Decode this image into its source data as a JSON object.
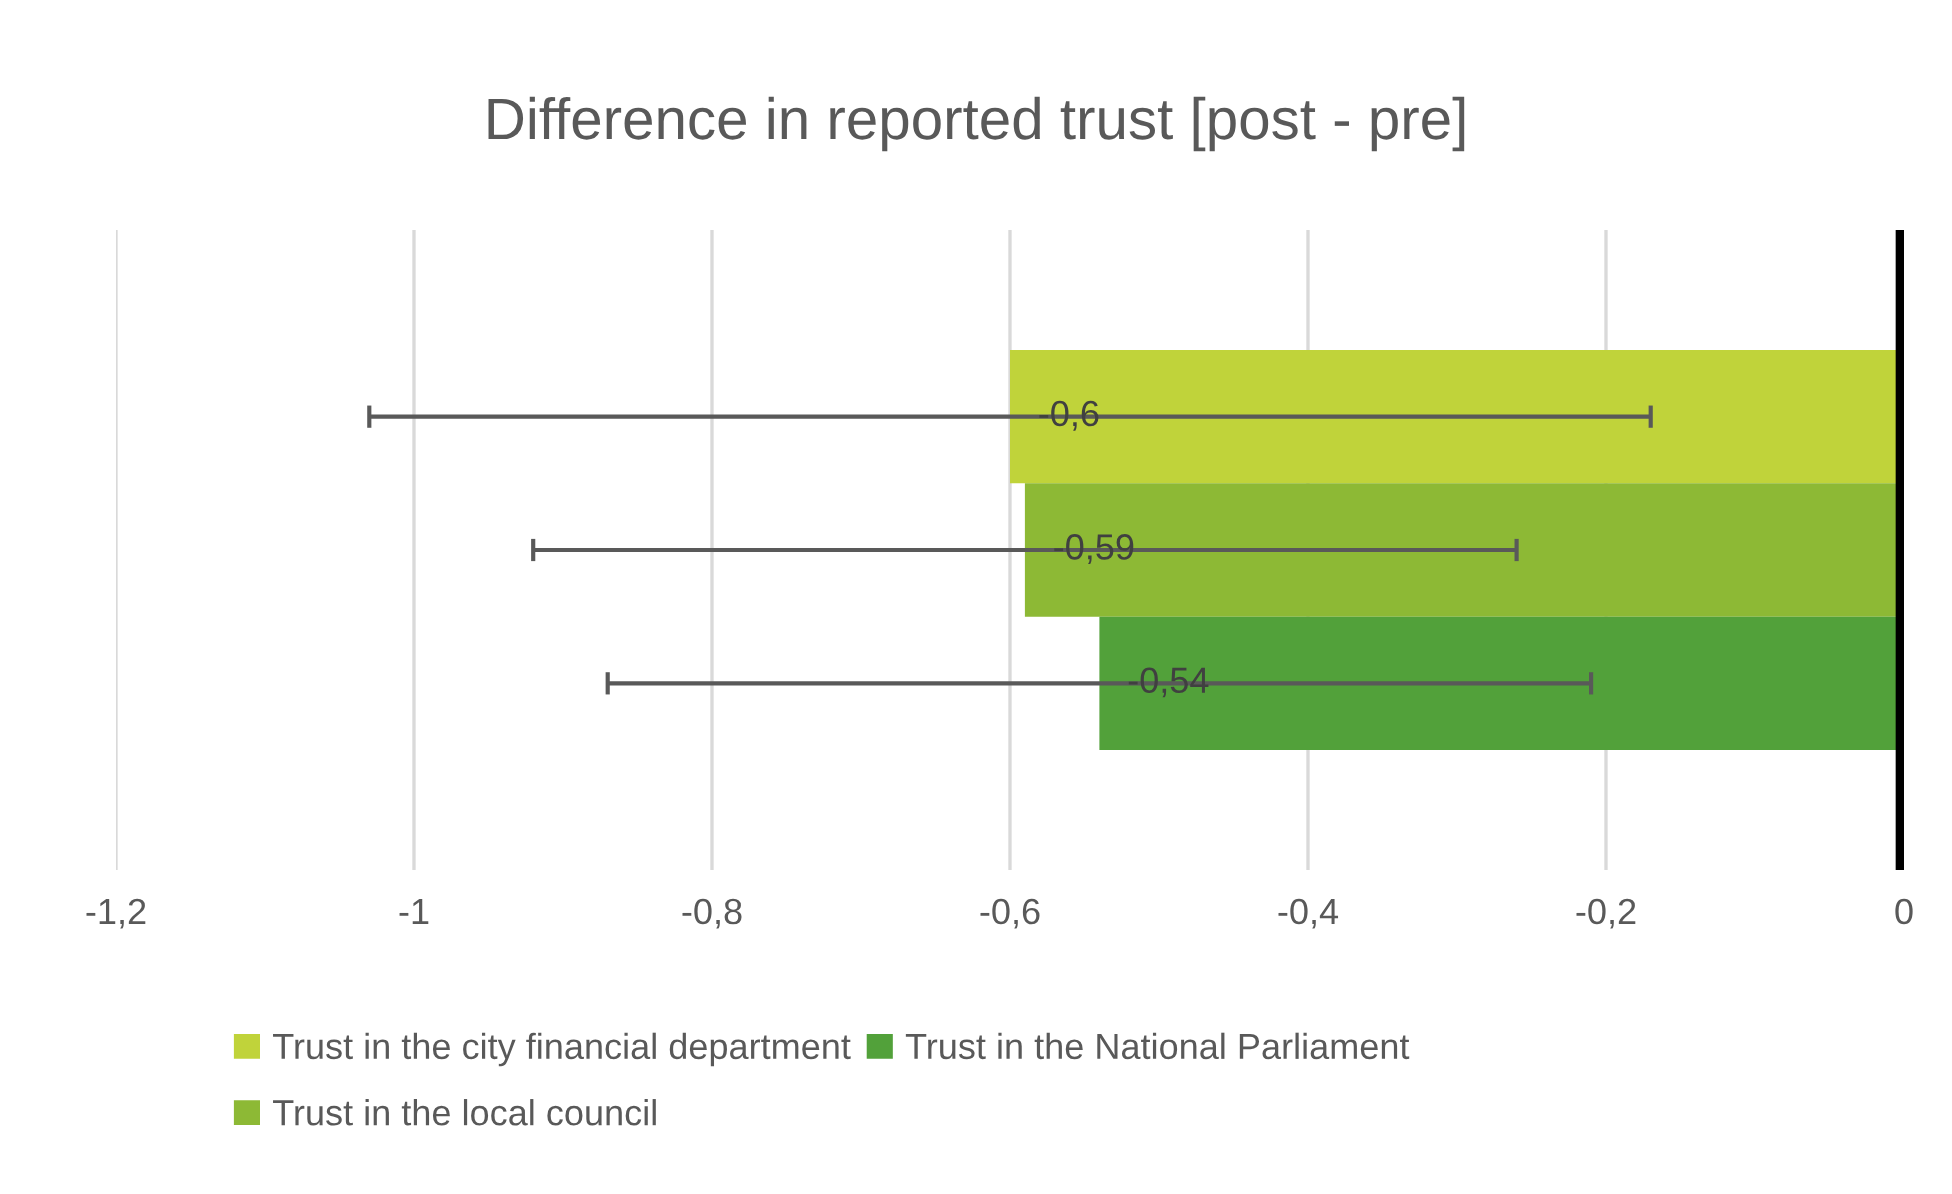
{
  "chart_data": {
    "type": "bar",
    "orientation": "horizontal",
    "title": "Difference in reported trust [post - pre]",
    "categories": [
      null
    ],
    "series": [
      {
        "name": "Trust in the city financial department",
        "color": "#c0d33a",
        "values": [
          -0.6
        ],
        "errors": [
          0.43
        ],
        "value_labels": [
          "-0,6"
        ]
      },
      {
        "name": "Trust in the local council",
        "color": "#8db935",
        "values": [
          -0.59
        ],
        "errors": [
          0.33
        ],
        "value_labels": [
          "-0,59"
        ]
      },
      {
        "name": "Trust in the National Parliament",
        "color": "#52a13a",
        "values": [
          -0.54
        ],
        "errors": [
          0.33
        ],
        "value_labels": [
          "-0,54"
        ]
      }
    ],
    "xlim": [
      -1.2,
      0
    ],
    "xticks": [
      {
        "value": -1.2,
        "label": "-1,2"
      },
      {
        "value": -1,
        "label": "-1"
      },
      {
        "value": -0.8,
        "label": "-0,8"
      },
      {
        "value": -0.6,
        "label": "-0,6"
      },
      {
        "value": -0.4,
        "label": "-0,4"
      },
      {
        "value": -0.2,
        "label": "-0,2"
      },
      {
        "value": 0,
        "label": "0"
      }
    ],
    "grid": "x",
    "legend": "bottom"
  }
}
